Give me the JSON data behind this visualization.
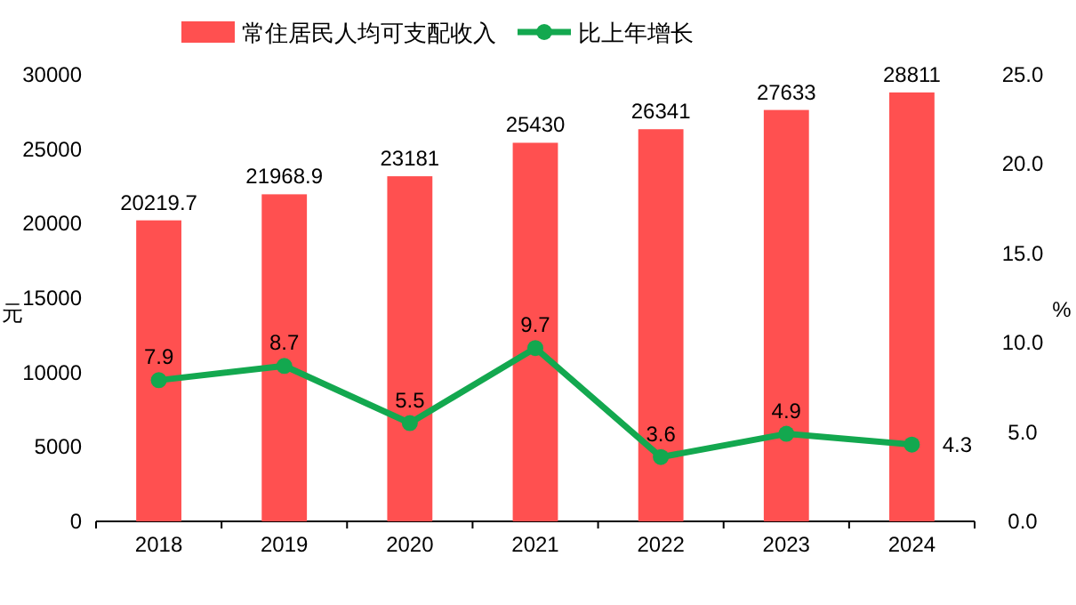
{
  "chart_data": {
    "type": "bar",
    "categories": [
      "2018",
      "2019",
      "2020",
      "2021",
      "2022",
      "2023",
      "2024"
    ],
    "ylabel": "元",
    "y2label": "%",
    "series": [
      {
        "name": "常住居民人均可支配收入",
        "color": "#ff5050",
        "values": [
          20219.7,
          21968.9,
          23181,
          25430,
          26341,
          27633,
          28811
        ]
      },
      {
        "name": "比上年增长",
        "type": "line",
        "axis": "y2",
        "color": "#13a84f",
        "marker": "circle",
        "values": [
          7.9,
          8.7,
          5.5,
          9.7,
          3.6,
          4.9,
          4.3
        ]
      }
    ],
    "ylim": [
      0,
      30000
    ],
    "yticks": [
      0,
      5000,
      10000,
      15000,
      20000,
      25000,
      30000
    ],
    "y2lim": [
      0,
      25
    ],
    "y2ticks": [
      {
        "value": 0,
        "label": "0.0"
      },
      {
        "value": 5,
        "label": "5.0"
      },
      {
        "value": 10,
        "label": "10.0"
      },
      {
        "value": 15,
        "label": "15.0"
      },
      {
        "value": 20,
        "label": "20.0"
      },
      {
        "value": 25,
        "label": "25.0"
      }
    ],
    "data_labels": true,
    "legend": "top",
    "grid": false
  }
}
